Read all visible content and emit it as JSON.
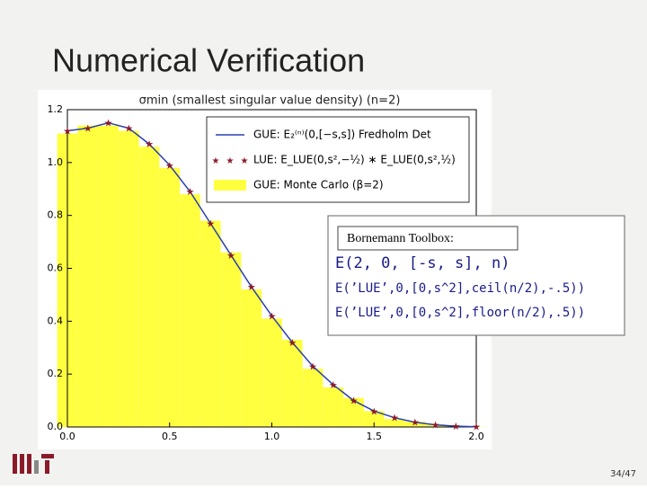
{
  "title": "Numerical Verification",
  "page_number": "34/47",
  "toolbox": {
    "title": "Bornemann Toolbox:",
    "lines": [
      "E(2, 0, [-s, s], n)",
      "E(’LUE’,0,[0,s^2],ceil(n/2),-.5))",
      "E(’LUE’,0,[0,s^2],floor(n/2),.5))"
    ]
  },
  "chart_data": {
    "type": "line",
    "title": "σmin (smallest singular value density) (n=2)",
    "x": [
      0,
      0.1,
      0.2,
      0.3,
      0.4,
      0.5,
      0.6,
      0.7,
      0.8,
      0.9,
      1.0,
      1.1,
      1.2,
      1.3,
      1.4,
      1.5,
      1.6,
      1.7,
      1.8,
      1.9,
      2.0
    ],
    "series": [
      {
        "name": "GUE: E₂⁽ⁿ⁾(0,[−s,s]) Fredholm Det",
        "color": "#2a3fb0",
        "mark": "line",
        "values": [
          1.12,
          1.13,
          1.15,
          1.13,
          1.07,
          0.99,
          0.89,
          0.77,
          0.65,
          0.53,
          0.42,
          0.32,
          0.23,
          0.16,
          0.1,
          0.06,
          0.035,
          0.018,
          0.008,
          0.003,
          0.001
        ]
      },
      {
        "name": "LUE: E_LUE(0,s²,−½) ∗ E_LUE(0,s²,½)",
        "color": "#8b1a2a",
        "mark": "star",
        "values": [
          1.12,
          1.13,
          1.15,
          1.13,
          1.07,
          0.99,
          0.89,
          0.77,
          0.65,
          0.53,
          0.42,
          0.32,
          0.23,
          0.16,
          0.1,
          0.06,
          0.035,
          0.018,
          0.008,
          0.003,
          0.001
        ]
      },
      {
        "name": "GUE: Monte Carlo (β=2)",
        "color": "#ffff40",
        "mark": "bar",
        "values": [
          1.11,
          1.14,
          1.14,
          1.12,
          1.06,
          0.98,
          0.88,
          0.78,
          0.66,
          0.52,
          0.41,
          0.33,
          0.22,
          0.15,
          0.11,
          0.06,
          0.03,
          0.02,
          0.01,
          0.003,
          0.001
        ]
      }
    ],
    "xlim": [
      0,
      2
    ],
    "ylim": [
      0,
      1.2
    ],
    "xticks": [
      {
        "value": 0,
        "label": "0.0"
      },
      0.5,
      {
        "value": 1,
        "label": "1.0"
      },
      1.5,
      {
        "value": 2,
        "label": "2.0"
      }
    ],
    "yticks": [
      {
        "value": 0,
        "label": "0.0"
      },
      0.2,
      0.4,
      0.6,
      0.8,
      {
        "value": 1,
        "label": "1.0"
      },
      1.2
    ]
  }
}
